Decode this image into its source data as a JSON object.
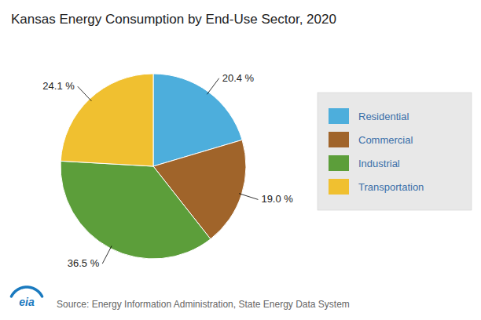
{
  "chart_data": {
    "type": "pie",
    "title": "Kansas Energy Consumption by End-Use Sector, 2020",
    "categories": [
      "Residential",
      "Commercial",
      "Industrial",
      "Transportation"
    ],
    "values": [
      20.4,
      19.0,
      36.5,
      24.1
    ],
    "value_labels": [
      "20.4 %",
      "19.0 %",
      "36.5 %",
      "24.1 %"
    ],
    "colors": [
      "#4DAEDC",
      "#A0642A",
      "#5C9E3A",
      "#F0C030"
    ],
    "data_labels": true,
    "legend": "right",
    "annotations": [
      "Source: Energy Information Administration, State Energy Data System",
      "eia"
    ]
  }
}
